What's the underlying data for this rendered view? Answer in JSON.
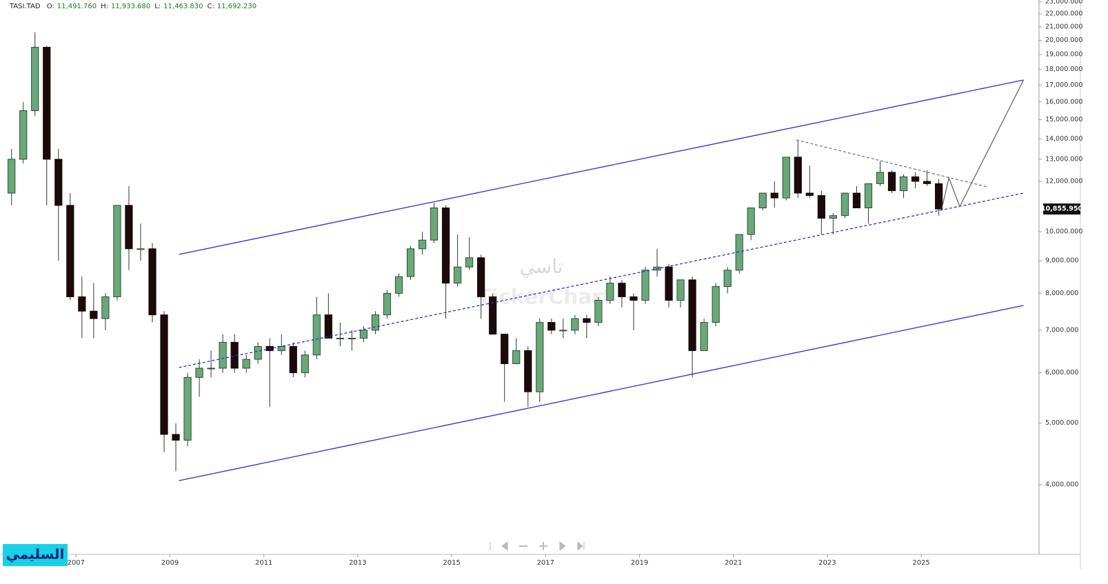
{
  "chart_data": {
    "type": "candlestick",
    "header": {
      "symbol": "TASI.TAD",
      "fields": [
        {
          "label": "O:",
          "value": "11,491.760"
        },
        {
          "label": "H:",
          "value": "11,933.680"
        },
        {
          "label": "L:",
          "value": "11,463.830"
        },
        {
          "label": "C:",
          "value": "11,692.230"
        }
      ]
    },
    "watermark": [
      "تاسي",
      "TickerChart"
    ],
    "logo": "السليمي",
    "log_scale": true,
    "up_color": "#6aa87a",
    "down_color": "#1a0a0a",
    "xlim": [
      2005.38,
      2027.51
    ],
    "xticks": [
      2007,
      2009,
      2011,
      2013,
      2015,
      2017,
      2019,
      2021,
      2023,
      2025
    ],
    "ylim": [
      3140,
      23140
    ],
    "yticks": [
      {
        "value": 4000,
        "label": "4,000.000"
      },
      {
        "value": 5000,
        "label": "5,000.000"
      },
      {
        "value": 6000,
        "label": "6,000.000"
      },
      {
        "value": 7000,
        "label": "7,000.000"
      },
      {
        "value": 8000,
        "label": "8,000.000"
      },
      {
        "value": 9000,
        "label": "9,000.000"
      },
      {
        "value": 10000,
        "label": "10,000.000"
      },
      {
        "value": 12000,
        "label": "12,000.000"
      },
      {
        "value": 13000,
        "label": "13,000.000"
      },
      {
        "value": 14000,
        "label": "14,000.000"
      },
      {
        "value": 15000,
        "label": "15,000.000"
      },
      {
        "value": 16000,
        "label": "16,000.000"
      },
      {
        "value": 17000,
        "label": "17,000.000"
      },
      {
        "value": 18000,
        "label": "18,000.000"
      },
      {
        "value": 19000,
        "label": "19,000.000"
      },
      {
        "value": 20000,
        "label": "20,000.000"
      },
      {
        "value": 21000,
        "label": "21,000.000"
      },
      {
        "value": 22000,
        "label": "22,000.000"
      },
      {
        "value": 23000,
        "label": "23,000.000"
      }
    ],
    "last_price": {
      "value": 10855.95,
      "label": "10,855.950"
    },
    "x": [
      2005.5,
      2005.75,
      2006,
      2006.25,
      2006.5,
      2006.75,
      2007,
      2007.25,
      2007.5,
      2007.75,
      2008,
      2008.25,
      2008.5,
      2008.75,
      2009,
      2009.25,
      2009.5,
      2009.75,
      2010,
      2010.25,
      2010.5,
      2010.75,
      2011,
      2011.25,
      2011.5,
      2011.75,
      2012,
      2012.25,
      2012.5,
      2012.75,
      2013,
      2013.25,
      2013.5,
      2013.75,
      2014,
      2014.25,
      2014.5,
      2014.75,
      2015,
      2015.25,
      2015.5,
      2015.75,
      2016,
      2016.25,
      2016.5,
      2016.75,
      2017,
      2017.25,
      2017.5,
      2017.75,
      2018,
      2018.25,
      2018.5,
      2018.75,
      2019,
      2019.25,
      2019.5,
      2019.75,
      2020,
      2020.25,
      2020.5,
      2020.75,
      2021,
      2021.25,
      2021.5,
      2021.75,
      2022,
      2022.25,
      2022.5,
      2022.75,
      2023,
      2023.25,
      2023.5,
      2023.75,
      2024,
      2024.25,
      2024.5,
      2024.75,
      2025,
      2025.25
    ],
    "open": [
      11500,
      13000,
      15500,
      19500,
      13000,
      11000,
      7900,
      7500,
      7300,
      7900,
      11000,
      9400,
      9400,
      7400,
      4800,
      4700,
      5900,
      6100,
      6100,
      6700,
      6100,
      6300,
      6600,
      6500,
      6600,
      6000,
      6400,
      7400,
      6800,
      6800,
      6800,
      7000,
      7400,
      8000,
      8500,
      9400,
      9700,
      10900,
      8300,
      8800,
      9100,
      7900,
      6900,
      6200,
      6500,
      5600,
      7200,
      7000,
      7000,
      7300,
      7200,
      7800,
      8300,
      7900,
      7800,
      8700,
      8800,
      7800,
      8400,
      6500,
      7200,
      8200,
      8700,
      9900,
      10900,
      11500,
      11300,
      13100,
      11500,
      11400,
      10500,
      10600,
      11500,
      10900,
      11900,
      12400,
      11600,
      12200,
      12000,
      11900
    ],
    "high": [
      13500,
      16000,
      20600,
      19600,
      13500,
      11500,
      8500,
      8300,
      8000,
      11000,
      11800,
      10300,
      9600,
      7500,
      5000,
      6000,
      6300,
      6500,
      6900,
      6900,
      6400,
      6700,
      6800,
      6900,
      6700,
      6500,
      7900,
      8000,
      7200,
      7000,
      7100,
      7500,
      8100,
      8600,
      9500,
      10000,
      11100,
      11000,
      9900,
      9800,
      9200,
      8000,
      6900,
      6800,
      6600,
      7300,
      7300,
      7300,
      7400,
      7400,
      7900,
      8500,
      8400,
      8000,
      8800,
      9400,
      8900,
      8400,
      8500,
      7300,
      8300,
      8800,
      9700,
      10900,
      11500,
      12000,
      13100,
      13950,
      12700,
      11600,
      10700,
      11500,
      11800,
      11900,
      12900,
      12500,
      12300,
      12400,
      12500,
      12100
    ],
    "low": [
      11000,
      12800,
      15200,
      11000,
      9000,
      7800,
      6800,
      6800,
      7000,
      7800,
      8700,
      9000,
      7200,
      4500,
      4200,
      4600,
      5500,
      5900,
      6000,
      6000,
      6000,
      6200,
      5300,
      6400,
      5900,
      5900,
      6300,
      6800,
      6600,
      6500,
      6700,
      6900,
      7300,
      7900,
      8400,
      9200,
      9600,
      7300,
      8200,
      8700,
      7300,
      6900,
      5400,
      6200,
      5300,
      5400,
      6900,
      6800,
      6900,
      6800,
      7100,
      7700,
      7600,
      7000,
      7700,
      8500,
      7600,
      7600,
      5900,
      6500,
      7100,
      8000,
      8600,
      9700,
      10800,
      10900,
      11200,
      11300,
      11300,
      9900,
      9900,
      10500,
      10900,
      10300,
      11800,
      11500,
      11300,
      11700,
      11800,
      10600
    ],
    "close": [
      13000,
      15500,
      19500,
      13000,
      11000,
      7900,
      7500,
      7300,
      7900,
      11000,
      9400,
      9400,
      7400,
      4800,
      4700,
      5900,
      6100,
      6100,
      6700,
      6100,
      6300,
      6600,
      6500,
      6600,
      6000,
      6400,
      7400,
      6800,
      6800,
      6800,
      7000,
      7400,
      8000,
      8500,
      9400,
      9700,
      10900,
      8300,
      8800,
      9100,
      7900,
      6900,
      6200,
      6500,
      5600,
      7200,
      7000,
      7000,
      7300,
      7200,
      7800,
      8300,
      7900,
      7800,
      8700,
      8800,
      7800,
      8400,
      6500,
      7200,
      8200,
      8700,
      9900,
      10900,
      11500,
      11300,
      13100,
      11500,
      11400,
      10500,
      10600,
      11500,
      10900,
      11900,
      12400,
      11600,
      12200,
      12000,
      11900,
      10856
    ],
    "trendlines": [
      {
        "x": [
          2009.19,
          2027.18
        ],
        "y": [
          9210,
          17320
        ],
        "color": "#2b2bdc",
        "dashed": false
      },
      {
        "x": [
          2009.19,
          2027.18
        ],
        "y": [
          4060,
          7656
        ],
        "color": "#2b2bdc",
        "dashed": false
      },
      {
        "x": [
          2009.19,
          2027.18
        ],
        "y": [
          6115,
          11500
        ],
        "color": "#2b2bdc",
        "dashed": true
      },
      {
        "x": [
          2022.34,
          2026.41
        ],
        "y": [
          13940,
          11760
        ],
        "color": "#777777",
        "dashed": true
      },
      {
        "x": [
          2025.44,
          2025.59,
          2025.82,
          2027.18
        ],
        "y": [
          10880,
          12150,
          10950,
          17320
        ],
        "color": "#666666",
        "dashed": false
      }
    ]
  }
}
